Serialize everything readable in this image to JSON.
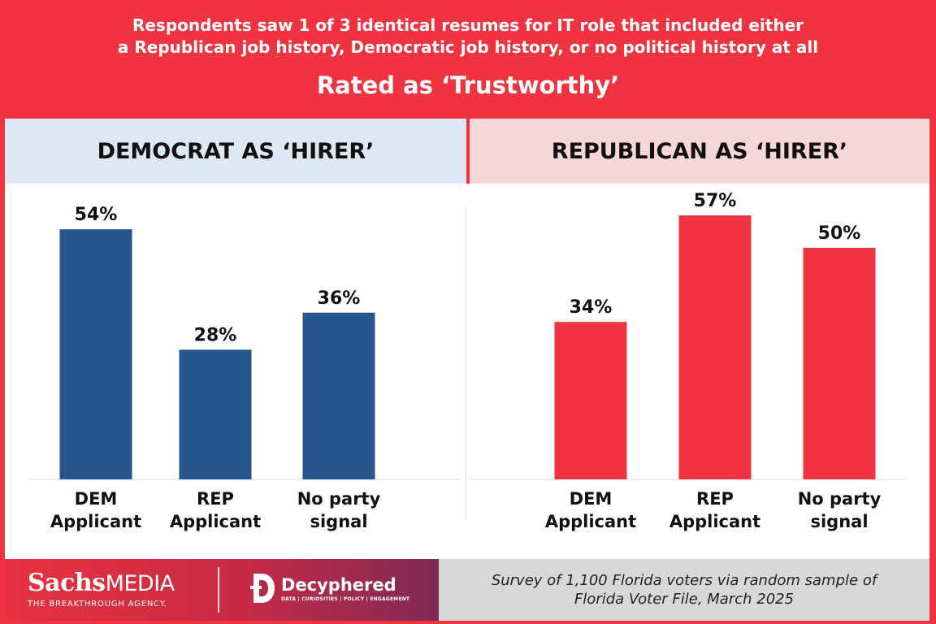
{
  "header": {
    "subtitle_line1": "Respondents saw 1 of 3 identical resumes for IT role that included either",
    "subtitle_line2": "a Republican job history, Democratic job history, or no political history at all",
    "title": "Rated as ‘Trustworthy’"
  },
  "colors": {
    "background": "#ef3340",
    "democrat_bar": "#27568f",
    "republican_bar": "#ef3340",
    "democrat_panel": "#dce8f4",
    "republican_panel": "#f5d7da"
  },
  "chart_data": [
    {
      "type": "bar",
      "title": "DEMOCRAT AS ‘HIRER’",
      "categories": [
        [
          "DEM",
          "Applicant"
        ],
        [
          "REP",
          "Applicant"
        ],
        [
          "No party",
          "signal"
        ]
      ],
      "values": [
        54,
        28,
        36
      ],
      "value_labels": [
        "54%",
        "28%",
        "36%"
      ],
      "color": "#27568f",
      "ylim": [
        0,
        60
      ],
      "grid": false
    },
    {
      "type": "bar",
      "title": "REPUBLICAN AS ‘HIRER’",
      "categories": [
        [
          "DEM",
          "Applicant"
        ],
        [
          "REP",
          "Applicant"
        ],
        [
          "No party",
          "signal"
        ]
      ],
      "values": [
        34,
        57,
        50
      ],
      "value_labels": [
        "34%",
        "57%",
        "50%"
      ],
      "color": "#ef3340",
      "ylim": [
        0,
        60
      ],
      "grid": false
    }
  ],
  "footer": {
    "logo1_name_bold": "Sachs",
    "logo1_name_light": "MEDIA",
    "logo1_tagline": "THE BREAKTHROUGH AGENCY.",
    "logo2_icon": "decyphered-logo-icon",
    "logo2_name": "Decyphered",
    "logo2_tagline": "DATA | CURIOSITIES | POLICY | ENGAGEMENT",
    "source_line1": "Survey of 1,100 Florida voters via random sample of",
    "source_line2": "Florida Voter File, March 2025"
  }
}
